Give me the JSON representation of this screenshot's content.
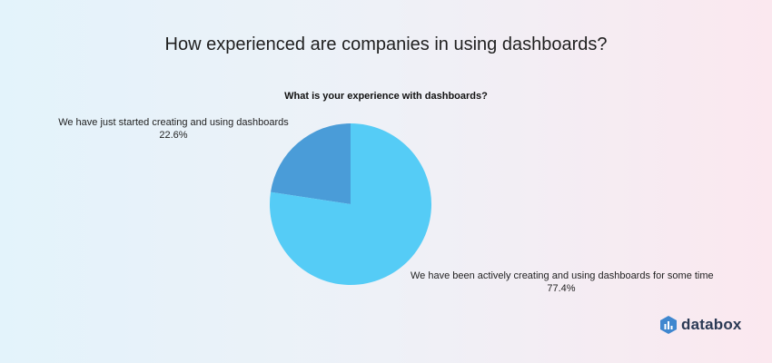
{
  "header": {
    "title": "How experienced are companies in using dashboards?"
  },
  "chart_data": {
    "type": "pie",
    "title": "What is your experience with dashboards?",
    "slices": [
      {
        "label": "We have just started creating and using dashboards",
        "value": 22.6,
        "value_label": "22.6%",
        "color": "#4a9cd8"
      },
      {
        "label": "We have been actively creating and using dashboards for some time",
        "value": 77.4,
        "value_label": "77.4%",
        "color": "#55ccf6"
      }
    ]
  },
  "brand": {
    "name": "databox",
    "icon": "databox-logo-icon",
    "color": "#2b3a55"
  }
}
